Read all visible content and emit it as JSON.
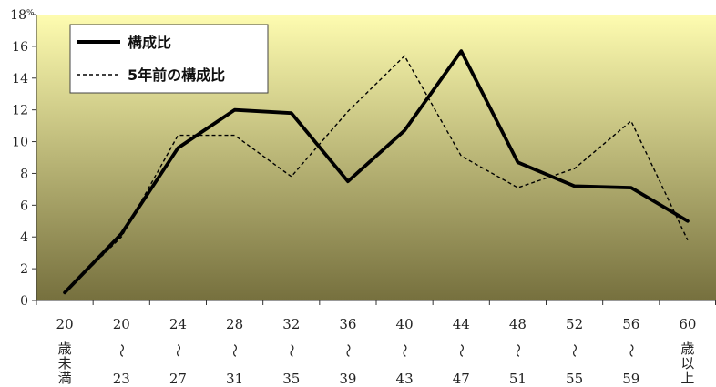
{
  "chart_data": {
    "type": "line",
    "y_unit": "%",
    "ylim": [
      0,
      18
    ],
    "y_ticks": [
      "0",
      "2",
      "4",
      "6",
      "8",
      "10",
      "12",
      "14",
      "16",
      "18"
    ],
    "categories": [
      {
        "top": "20",
        "mid": [
          "歳",
          "未",
          "満"
        ],
        "bottom": ""
      },
      {
        "top": "20",
        "mid": [
          "〜"
        ],
        "bottom": "23"
      },
      {
        "top": "24",
        "mid": [
          "〜"
        ],
        "bottom": "27"
      },
      {
        "top": "28",
        "mid": [
          "〜"
        ],
        "bottom": "31"
      },
      {
        "top": "32",
        "mid": [
          "〜"
        ],
        "bottom": "35"
      },
      {
        "top": "36",
        "mid": [
          "〜"
        ],
        "bottom": "39"
      },
      {
        "top": "40",
        "mid": [
          "〜"
        ],
        "bottom": "43"
      },
      {
        "top": "44",
        "mid": [
          "〜"
        ],
        "bottom": "47"
      },
      {
        "top": "48",
        "mid": [
          "〜"
        ],
        "bottom": "51"
      },
      {
        "top": "52",
        "mid": [
          "〜"
        ],
        "bottom": "55"
      },
      {
        "top": "56",
        "mid": [
          "〜"
        ],
        "bottom": "59"
      },
      {
        "top": "60",
        "mid": [
          "歳",
          "以",
          "上"
        ],
        "bottom": ""
      }
    ],
    "series": [
      {
        "name": "構成比",
        "style": "solid",
        "color": "#000000",
        "values": [
          0.5,
          4.2,
          9.6,
          12.0,
          11.8,
          7.5,
          10.7,
          15.7,
          8.7,
          7.2,
          7.1,
          5.0
        ]
      },
      {
        "name": "5年前の構成比",
        "style": "dashed",
        "color": "#000000",
        "values": [
          0.5,
          4.0,
          10.4,
          10.4,
          7.8,
          11.9,
          15.4,
          9.1,
          7.1,
          8.3,
          11.3,
          3.8
        ]
      }
    ],
    "background_gradient": [
      "#fefcb0",
      "#76703e"
    ],
    "legend_position": "top-left",
    "grid": false
  }
}
